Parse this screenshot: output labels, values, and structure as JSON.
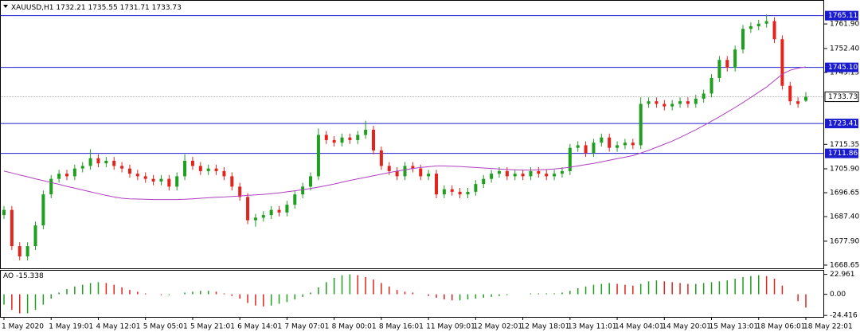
{
  "chart_data": {
    "type": "candlestick",
    "symbol": "XAUUSD,H1",
    "categories": [
      "1 May 2020",
      null,
      null,
      null,
      null,
      null,
      "1 May 19:01",
      null,
      null,
      null,
      null,
      null,
      "4 May 12:01",
      null,
      null,
      null,
      null,
      null,
      "5 May 05:01",
      null,
      null,
      null,
      null,
      null,
      "5 May 21:01",
      null,
      null,
      null,
      null,
      null,
      "6 May 14:01",
      null,
      null,
      null,
      null,
      null,
      "7 May 07:01",
      null,
      null,
      null,
      null,
      null,
      "8 May 00:01",
      null,
      null,
      null,
      null,
      null,
      "8 May 16:01",
      null,
      null,
      null,
      null,
      null,
      "11 May 09:01",
      null,
      null,
      null,
      null,
      null,
      "12 May 02:01",
      null,
      null,
      null,
      null,
      null,
      "12 May 18:01",
      null,
      null,
      null,
      null,
      null,
      "13 May 11:01",
      null,
      null,
      null,
      null,
      null,
      "14 May 04:01",
      null,
      null,
      null,
      null,
      null,
      "14 May 20:01",
      null,
      null,
      null,
      null,
      null,
      "15 May 13:01",
      null,
      null,
      null,
      null,
      null,
      "18 May 06:01",
      null,
      null,
      null,
      null,
      null,
      "18 May 22:01"
    ],
    "open": [
      1688,
      1690,
      1676,
      1672,
      1676,
      1684,
      1696,
      1702,
      1704,
      1703,
      1706,
      1707,
      1710,
      1708,
      1709,
      1707,
      1706,
      1704,
      1703,
      1702,
      1701,
      1702,
      1699,
      1703,
      1709,
      1707,
      1705,
      1706,
      1705,
      1703,
      1699,
      1695,
      1686,
      1687,
      1688,
      1690,
      1689,
      1692,
      1696,
      1699,
      1703,
      1719,
      1717,
      1716,
      1718,
      1717,
      1719,
      1721,
      1713,
      1707,
      1705,
      1703,
      1707,
      1706,
      1703,
      1704,
      1696,
      1698,
      1697,
      1696,
      1697,
      1700,
      1702,
      1704,
      1705,
      1703,
      1704,
      1703,
      1705,
      1704,
      1703,
      1704,
      1705,
      1714,
      1715,
      1712,
      1716,
      1718,
      1714,
      1715,
      1716,
      1715,
      1731,
      1732,
      1731,
      1730,
      1731,
      1732,
      1731,
      1733,
      1735,
      1741,
      1748,
      1745,
      1752,
      1760,
      1761,
      1762,
      1763,
      1756,
      1738,
      1732,
      1732.21
    ],
    "high": [
      1691.5,
      1691.5,
      1677.5,
      1677.5,
      1685.5,
      1697.5,
      1703.5,
      1705.5,
      1705.5,
      1707.5,
      1708.5,
      1713.5,
      1711.5,
      1710.5,
      1710.5,
      1708.5,
      1707.5,
      1705.5,
      1704.5,
      1703.5,
      1703.5,
      1703.5,
      1704.5,
      1711.5,
      1710.5,
      1708.5,
      1707.5,
      1707.5,
      1706.5,
      1704.5,
      1700.5,
      1696.5,
      1688.5,
      1689.5,
      1691.5,
      1691.5,
      1693.5,
      1697.5,
      1700.5,
      1704.5,
      1721.5,
      1720.5,
      1718.5,
      1719.5,
      1719.5,
      1720.5,
      1724.5,
      1722.5,
      1714.5,
      1708.5,
      1706.5,
      1708.5,
      1708.5,
      1707.5,
      1705.5,
      1705.5,
      1699.5,
      1699.5,
      1698.5,
      1698.5,
      1701.5,
      1703.5,
      1705.5,
      1706.5,
      1706.5,
      1705.5,
      1705.5,
      1706.5,
      1706.5,
      1705.5,
      1705.5,
      1706.5,
      1715.5,
      1716.5,
      1716.5,
      1717.5,
      1719.5,
      1719.5,
      1716.5,
      1717.5,
      1717.5,
      1733.5,
      1733.5,
      1733.5,
      1732.5,
      1732.5,
      1733.5,
      1733.5,
      1734.5,
      1736.5,
      1742.5,
      1749.5,
      1749.5,
      1753.5,
      1761.5,
      1762.5,
      1763.5,
      1765.5,
      1764.5,
      1757.5,
      1739.5,
      1733.5,
      1735.55
    ],
    "low": [
      1686.5,
      1674.5,
      1670.5,
      1670.5,
      1674.5,
      1682.5,
      1694.5,
      1700.5,
      1701.5,
      1701.5,
      1704.5,
      1705.5,
      1706.5,
      1706.5,
      1705.5,
      1704.5,
      1702.5,
      1701.5,
      1700.5,
      1699.5,
      1699.5,
      1697.5,
      1697.5,
      1701.5,
      1705.5,
      1703.5,
      1703.5,
      1703.5,
      1701.5,
      1697.5,
      1693.5,
      1684.5,
      1683.5,
      1685.5,
      1686.5,
      1687.5,
      1687.5,
      1690.5,
      1694.5,
      1697.5,
      1701.5,
      1715.5,
      1714.5,
      1714.5,
      1715.5,
      1715.5,
      1717.5,
      1711.5,
      1705.5,
      1703.5,
      1701.5,
      1701.5,
      1704.5,
      1701.5,
      1701.5,
      1694.5,
      1694.5,
      1695.5,
      1694.5,
      1694.5,
      1695.5,
      1698.5,
      1700.5,
      1702.5,
      1701.5,
      1701.5,
      1701.5,
      1701.5,
      1702.5,
      1701.5,
      1701.5,
      1702.5,
      1703.5,
      1712.5,
      1710.5,
      1710.5,
      1714.5,
      1712.5,
      1712.5,
      1713.5,
      1713.5,
      1713.5,
      1729.5,
      1729.5,
      1728.5,
      1728.5,
      1729.5,
      1729.5,
      1729.5,
      1731.5,
      1733.5,
      1739.5,
      1743.5,
      1743.5,
      1750.5,
      1758.5,
      1759.5,
      1760.5,
      1754.5,
      1736.5,
      1730.5,
      1729.5,
      1731.71
    ],
    "close": [
      1690,
      1676,
      1672,
      1676,
      1684,
      1696,
      1702,
      1704,
      1703,
      1706,
      1707,
      1710,
      1708,
      1709,
      1707,
      1706,
      1704,
      1703,
      1702,
      1701,
      1702,
      1699,
      1703,
      1709,
      1707,
      1705,
      1706,
      1705,
      1703,
      1699,
      1695,
      1686,
      1687,
      1688,
      1690,
      1689,
      1692,
      1696,
      1699,
      1703,
      1719,
      1717,
      1716,
      1718,
      1717,
      1719,
      1721,
      1713,
      1707,
      1705,
      1703,
      1707,
      1706,
      1703,
      1704,
      1696,
      1698,
      1697,
      1696,
      1697,
      1700,
      1702,
      1704,
      1705,
      1703,
      1704,
      1703,
      1705,
      1704,
      1703,
      1704,
      1705,
      1714,
      1715,
      1712,
      1716,
      1718,
      1714,
      1715,
      1716,
      1715,
      1731,
      1732,
      1731,
      1730,
      1731,
      1732,
      1731,
      1733,
      1735,
      1741,
      1748,
      1745,
      1752,
      1760,
      1761,
      1762,
      1763,
      1756,
      1738,
      1732,
      1731,
      1733.73
    ],
    "up_color": "#1f9e1f",
    "down_color": "#e3231c",
    "ylim": [
      1667.41,
      1770.85
    ],
    "yticks": [
      {
        "value": 1761.9,
        "label": "1761.90"
      },
      {
        "value": 1752.4,
        "label": "1752.40"
      },
      {
        "value": 1743.15,
        "label": "1743.15"
      },
      {
        "value": 1715.35,
        "label": "1715.35"
      },
      {
        "value": 1705.9,
        "label": "1705.90"
      },
      {
        "value": 1696.65,
        "label": "1696.65"
      },
      {
        "value": 1687.4,
        "label": "1687.40"
      },
      {
        "value": 1677.9,
        "label": "1677.90"
      },
      {
        "value": 1668.65,
        "label": "1668.65"
      }
    ],
    "levels": [
      1765.11,
      {
        "value": 1745.1,
        "label": "1745.10"
      },
      1723.41,
      1711.86
    ],
    "level_color": "#1c1ccf",
    "ma": {
      "color": "#b040c0",
      "values": [
        1705,
        1704.3,
        1703.5,
        1702.8,
        1702,
        1701.3,
        1700.6,
        1699.9,
        1699.1,
        1698.4,
        1697.7,
        1697,
        1696.3,
        1695.6,
        1695,
        1694.5,
        1694.3,
        1694.2,
        1694.1,
        1694,
        1694,
        1694,
        1694,
        1694.1,
        1694.3,
        1694.5,
        1694.7,
        1694.9,
        1695,
        1695.2,
        1695.4,
        1695.6,
        1695.8,
        1696,
        1696.3,
        1696.6,
        1697,
        1697.4,
        1697.8,
        1698.3,
        1698.8,
        1699.4,
        1700,
        1700.7,
        1701.4,
        1702,
        1702.6,
        1703.2,
        1703.8,
        1704.4,
        1705,
        1705.5,
        1706,
        1706.4,
        1706.7,
        1707,
        1707,
        1706.9,
        1706.8,
        1706.6,
        1706.4,
        1706.2,
        1706,
        1705.8,
        1705.6,
        1705.5,
        1705.4,
        1705.4,
        1705.5,
        1705.6,
        1705.8,
        1706.1,
        1706.5,
        1707,
        1707.5,
        1708,
        1708.6,
        1709.2,
        1709.8,
        1710.4,
        1711,
        1712,
        1713,
        1714.2,
        1715.4,
        1716.6,
        1718,
        1719.5,
        1721,
        1722.6,
        1724.3,
        1726,
        1727.8,
        1729.6,
        1731.5,
        1733.5,
        1735.5,
        1737.5,
        1740,
        1742.5,
        1744,
        1744.8,
        1745.3
      ]
    },
    "ao": {
      "name": "AO",
      "values": [
        -12,
        -18,
        -22,
        -22,
        -18,
        -12,
        -5,
        2,
        6,
        9,
        11,
        13,
        14,
        13,
        11,
        8,
        5,
        3,
        1,
        0,
        -1,
        -1,
        0,
        2,
        3,
        4,
        4,
        3,
        1,
        -2,
        -5,
        -10,
        -13,
        -14,
        -13,
        -11,
        -9,
        -6,
        -3,
        2,
        8,
        14,
        19,
        22,
        23,
        22,
        20,
        17,
        13,
        9,
        5,
        3,
        2,
        0,
        -2,
        -4,
        -6,
        -7,
        -7,
        -6,
        -5,
        -4,
        -3,
        -2,
        -1,
        0,
        0,
        1,
        1,
        1,
        1,
        2,
        4,
        7,
        9,
        11,
        12,
        13,
        12,
        11,
        10,
        12,
        15,
        16,
        15,
        14,
        13,
        12,
        12,
        13,
        14,
        15,
        16,
        18,
        20,
        21,
        22,
        21,
        18,
        10,
        0,
        -8,
        -15.338
      ],
      "ylim": [
        -26.1,
        27.2
      ],
      "yticks": [
        22.961,
        {
          "value": 0,
          "label": "0.00"
        },
        -24.416
      ],
      "up_color": "#1f9e1f",
      "down_color": "#e3231c"
    }
  }
}
